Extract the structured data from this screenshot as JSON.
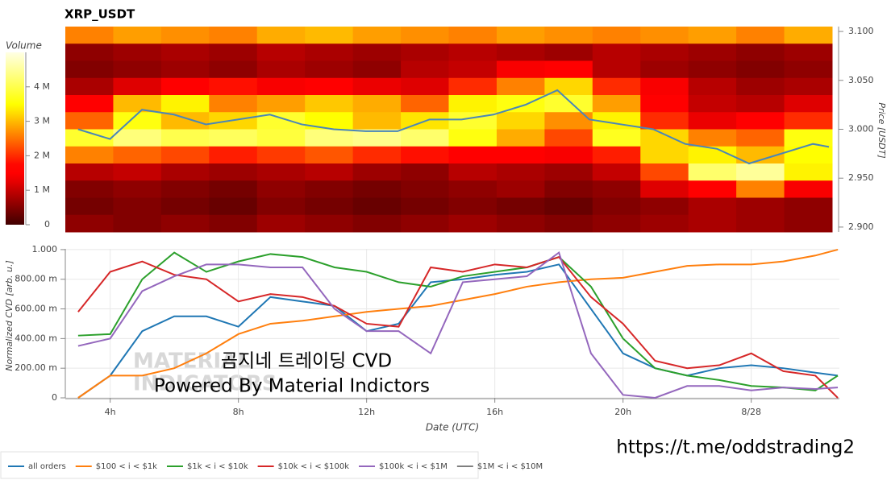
{
  "chart_data": [
    {
      "type": "heatmap",
      "title": "XRP_USDT",
      "colormap": "hot",
      "xlim": [
        2.6,
        26.6
      ],
      "ylim": [
        2.895,
        3.105
      ],
      "yticks": [
        {
          "value": 2.9,
          "label": "2.900"
        },
        {
          "value": 2.95,
          "label": "2.950"
        },
        {
          "value": 3.0,
          "label": "3.000"
        },
        {
          "value": 3.05,
          "label": "3.050"
        },
        {
          "value": 3.1,
          "label": "3.100"
        }
      ],
      "y_label": "Price [USDT]",
      "volume": {
        "title": "Volume",
        "lim": [
          0,
          5000000
        ],
        "ticks": [
          0,
          {
            "value": 1000000,
            "label": "1 M"
          },
          {
            "value": 2000000,
            "label": "2 M"
          },
          {
            "value": 3000000,
            "label": "3 M"
          },
          {
            "value": 4000000,
            "label": "4 M"
          }
        ]
      },
      "rows": [
        [
          2600000.0,
          2800000.0,
          2700000.0,
          2600000.0,
          2900000.0,
          3000000.0,
          2800000.0,
          2700000.0,
          2600000.0,
          2800000.0,
          2700000.0,
          2600000.0,
          2700000.0,
          2800000.0,
          2600000.0,
          2900000.0
        ],
        [
          600000.0,
          700000.0,
          800000.0,
          700000.0,
          900000.0,
          800000.0,
          700000.0,
          800000.0,
          900000.0,
          800000.0,
          700000.0,
          900000.0,
          800000.0,
          700000.0,
          600000.0,
          700000.0
        ],
        [
          500000.0,
          600000.0,
          700000.0,
          600000.0,
          800000.0,
          700000.0,
          600000.0,
          900000.0,
          1000000.0,
          1400000.0,
          1500000.0,
          900000.0,
          700000.0,
          600000.0,
          500000.0,
          600000.0
        ],
        [
          800000.0,
          1200000.0,
          1600000.0,
          1800000.0,
          1400000.0,
          1500000.0,
          1300000.0,
          1200000.0,
          2000000.0,
          2600000.0,
          3200000.0,
          2000000.0,
          1400000.0,
          900000.0,
          700000.0,
          800000.0
        ],
        [
          1500000.0,
          3000000.0,
          3400000.0,
          2600000.0,
          2800000.0,
          3100000.0,
          2900000.0,
          2400000.0,
          3400000.0,
          3600000.0,
          3800000.0,
          2800000.0,
          1500000.0,
          1000000.0,
          900000.0,
          1200000.0
        ],
        [
          2400000.0,
          3600000.0,
          3000000.0,
          3200000.0,
          3800000.0,
          3500000.0,
          3000000.0,
          3300000.0,
          3800000.0,
          3200000.0,
          2700000.0,
          3400000.0,
          2000000.0,
          1300000.0,
          1500000.0,
          2000000.0
        ],
        [
          3800000.0,
          4300000.0,
          4000000.0,
          4100000.0,
          3900000.0,
          4300000.0,
          4400000.0,
          4200000.0,
          3600000.0,
          2900000.0,
          2200000.0,
          3700000.0,
          3200000.0,
          2600000.0,
          2400000.0,
          3600000.0
        ],
        [
          2600000.0,
          2400000.0,
          2200000.0,
          1900000.0,
          2100000.0,
          2300000.0,
          2000000.0,
          1800000.0,
          1600000.0,
          1500000.0,
          1400000.0,
          1900000.0,
          3200000.0,
          3400000.0,
          3000000.0,
          3500000.0
        ],
        [
          900000.0,
          1000000.0,
          800000.0,
          700000.0,
          800000.0,
          900000.0,
          700000.0,
          600000.0,
          900000.0,
          800000.0,
          700000.0,
          1000000.0,
          2200000.0,
          4200000.0,
          4500000.0,
          3400000.0
        ],
        [
          500000.0,
          600000.0,
          500000.0,
          400000.0,
          600000.0,
          500000.0,
          400000.0,
          500000.0,
          600000.0,
          700000.0,
          500000.0,
          600000.0,
          1200000.0,
          1600000.0,
          2600000.0,
          1400000.0
        ],
        [
          400000.0,
          500000.0,
          400000.0,
          300000.0,
          500000.0,
          400000.0,
          300000.0,
          400000.0,
          500000.0,
          400000.0,
          300000.0,
          500000.0,
          600000.0,
          800000.0,
          700000.0,
          600000.0
        ],
        [
          600000.0,
          500000.0,
          600000.0,
          500000.0,
          700000.0,
          600000.0,
          500000.0,
          600000.0,
          700000.0,
          600000.0,
          500000.0,
          600000.0,
          700000.0,
          800000.0,
          700000.0,
          600000.0
        ]
      ],
      "x": [
        3,
        4,
        5,
        6,
        7,
        8,
        9,
        10,
        11,
        12,
        13,
        14,
        15,
        16,
        17,
        18,
        19,
        20,
        21,
        22,
        23,
        24,
        25,
        26,
        26.5
      ],
      "price": {
        "color": "#4a86b8",
        "values": [
          3.0,
          2.99,
          3.02,
          3.015,
          3.005,
          3.01,
          3.015,
          3.005,
          3.0,
          2.998,
          2.998,
          3.01,
          3.01,
          3.015,
          3.025,
          3.04,
          3.01,
          3.005,
          3.0,
          2.985,
          2.98,
          2.965,
          2.975,
          2.985,
          2.982
        ]
      }
    },
    {
      "type": "line",
      "x": [
        3,
        4,
        5,
        6,
        7,
        8,
        9,
        10,
        11,
        12,
        13,
        14,
        15,
        16,
        17,
        18,
        19,
        20,
        21,
        22,
        23,
        24,
        25,
        26,
        26.7
      ],
      "xlim": [
        2.6,
        26.75
      ],
      "xticks": [
        {
          "value": 4,
          "label": "4h"
        },
        {
          "value": 8,
          "label": "8h"
        },
        {
          "value": 12,
          "label": "12h"
        },
        {
          "value": 16,
          "label": "16h"
        },
        {
          "value": 20,
          "label": "20h"
        },
        {
          "value": 24,
          "label": "8/28"
        }
      ],
      "ylim": [
        0,
        1.005
      ],
      "yticks": [
        0,
        {
          "value": 0.2,
          "label": "200.00 m"
        },
        {
          "value": 0.4,
          "label": "400.00 m"
        },
        {
          "value": 0.6,
          "label": "600.00 m"
        },
        {
          "value": 0.8,
          "label": "800.00 m"
        },
        {
          "value": 1,
          "label": "1.000"
        }
      ],
      "x_label": "Date (UTC)",
      "y_label": "Normalized CVD [arb. u.]",
      "grid": true,
      "legend": "bottom-left",
      "series": [
        {
          "name": "all orders",
          "color": "#1f77b4",
          "values": [
            0.0,
            0.15,
            0.45,
            0.55,
            0.55,
            0.48,
            0.68,
            0.65,
            0.62,
            0.45,
            0.5,
            0.78,
            0.8,
            0.83,
            0.85,
            0.9,
            0.6,
            0.3,
            0.2,
            0.15,
            0.2,
            0.22,
            0.2,
            0.17,
            0.15
          ]
        },
        {
          "name": "$100 < i < $1k",
          "color": "#ff7f0e",
          "values": [
            0.0,
            0.15,
            0.15,
            0.2,
            0.3,
            0.43,
            0.5,
            0.52,
            0.55,
            0.58,
            0.6,
            0.62,
            0.66,
            0.7,
            0.75,
            0.78,
            0.8,
            0.81,
            0.85,
            0.89,
            0.9,
            0.9,
            0.92,
            0.96,
            1.0
          ]
        },
        {
          "name": "$1k < i < $10k",
          "color": "#2ca02c",
          "values": [
            0.42,
            0.43,
            0.8,
            0.98,
            0.85,
            0.92,
            0.97,
            0.95,
            0.88,
            0.85,
            0.78,
            0.75,
            0.82,
            0.85,
            0.88,
            0.95,
            0.75,
            0.4,
            0.2,
            0.15,
            0.12,
            0.08,
            0.07,
            0.05,
            0.15
          ]
        },
        {
          "name": "$10k < i < $100k",
          "color": "#d62728",
          "values": [
            0.58,
            0.85,
            0.92,
            0.83,
            0.8,
            0.65,
            0.7,
            0.68,
            0.62,
            0.5,
            0.48,
            0.88,
            0.85,
            0.9,
            0.88,
            0.95,
            0.68,
            0.5,
            0.25,
            0.2,
            0.22,
            0.3,
            0.18,
            0.15,
            0.0
          ]
        },
        {
          "name": "$100k < i < $1M",
          "color": "#9467bd",
          "values": [
            0.35,
            0.4,
            0.72,
            0.82,
            0.9,
            0.9,
            0.88,
            0.88,
            0.6,
            0.45,
            0.45,
            0.3,
            0.78,
            0.8,
            0.82,
            0.98,
            0.3,
            0.02,
            0.0,
            0.08,
            0.08,
            0.05,
            0.07,
            0.06,
            0.07
          ]
        },
        {
          "name": "$1M < i < $10M",
          "color": "#7f7f7f",
          "values": [
            null,
            null,
            null,
            null,
            null,
            null,
            null,
            null,
            null,
            null,
            null,
            null,
            null,
            null,
            null,
            null,
            null,
            null,
            null,
            null,
            null,
            null,
            null,
            null,
            null
          ]
        }
      ],
      "annotations": [
        "곰지네 트레이딩 CVD",
        "Powered By Material Indictors",
        "https://t.me/oddstrading2"
      ],
      "watermark": [
        "MATERIAL",
        "INDICATORS"
      ]
    }
  ]
}
